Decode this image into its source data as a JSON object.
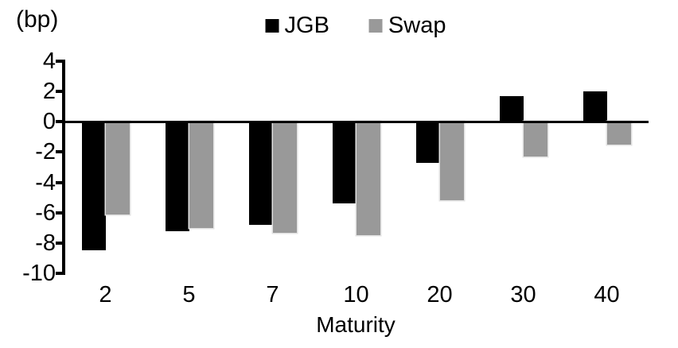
{
  "chart_data": {
    "type": "bar",
    "title": "",
    "unit_label": "(bp)",
    "xlabel": "Maturity",
    "ylabel": "",
    "categories": [
      "2",
      "5",
      "7",
      "10",
      "20",
      "30",
      "40"
    ],
    "series": [
      {
        "name": "JGB",
        "color": "#000000",
        "values": [
          -8.5,
          -7.2,
          -6.8,
          -5.4,
          -2.7,
          1.7,
          2.0
        ]
      },
      {
        "name": "Swap",
        "color": "#999999",
        "values": [
          -6.1,
          -7.0,
          -7.3,
          -7.5,
          -5.2,
          -2.3,
          -1.5
        ]
      }
    ],
    "y_ticks": [
      4,
      2,
      0,
      -2,
      -4,
      -6,
      -8,
      -10
    ],
    "ylim": [
      -10,
      4
    ],
    "grid": false,
    "legend_position": "top-center",
    "axis_color": "#000000",
    "background_color": "#ffffff"
  }
}
